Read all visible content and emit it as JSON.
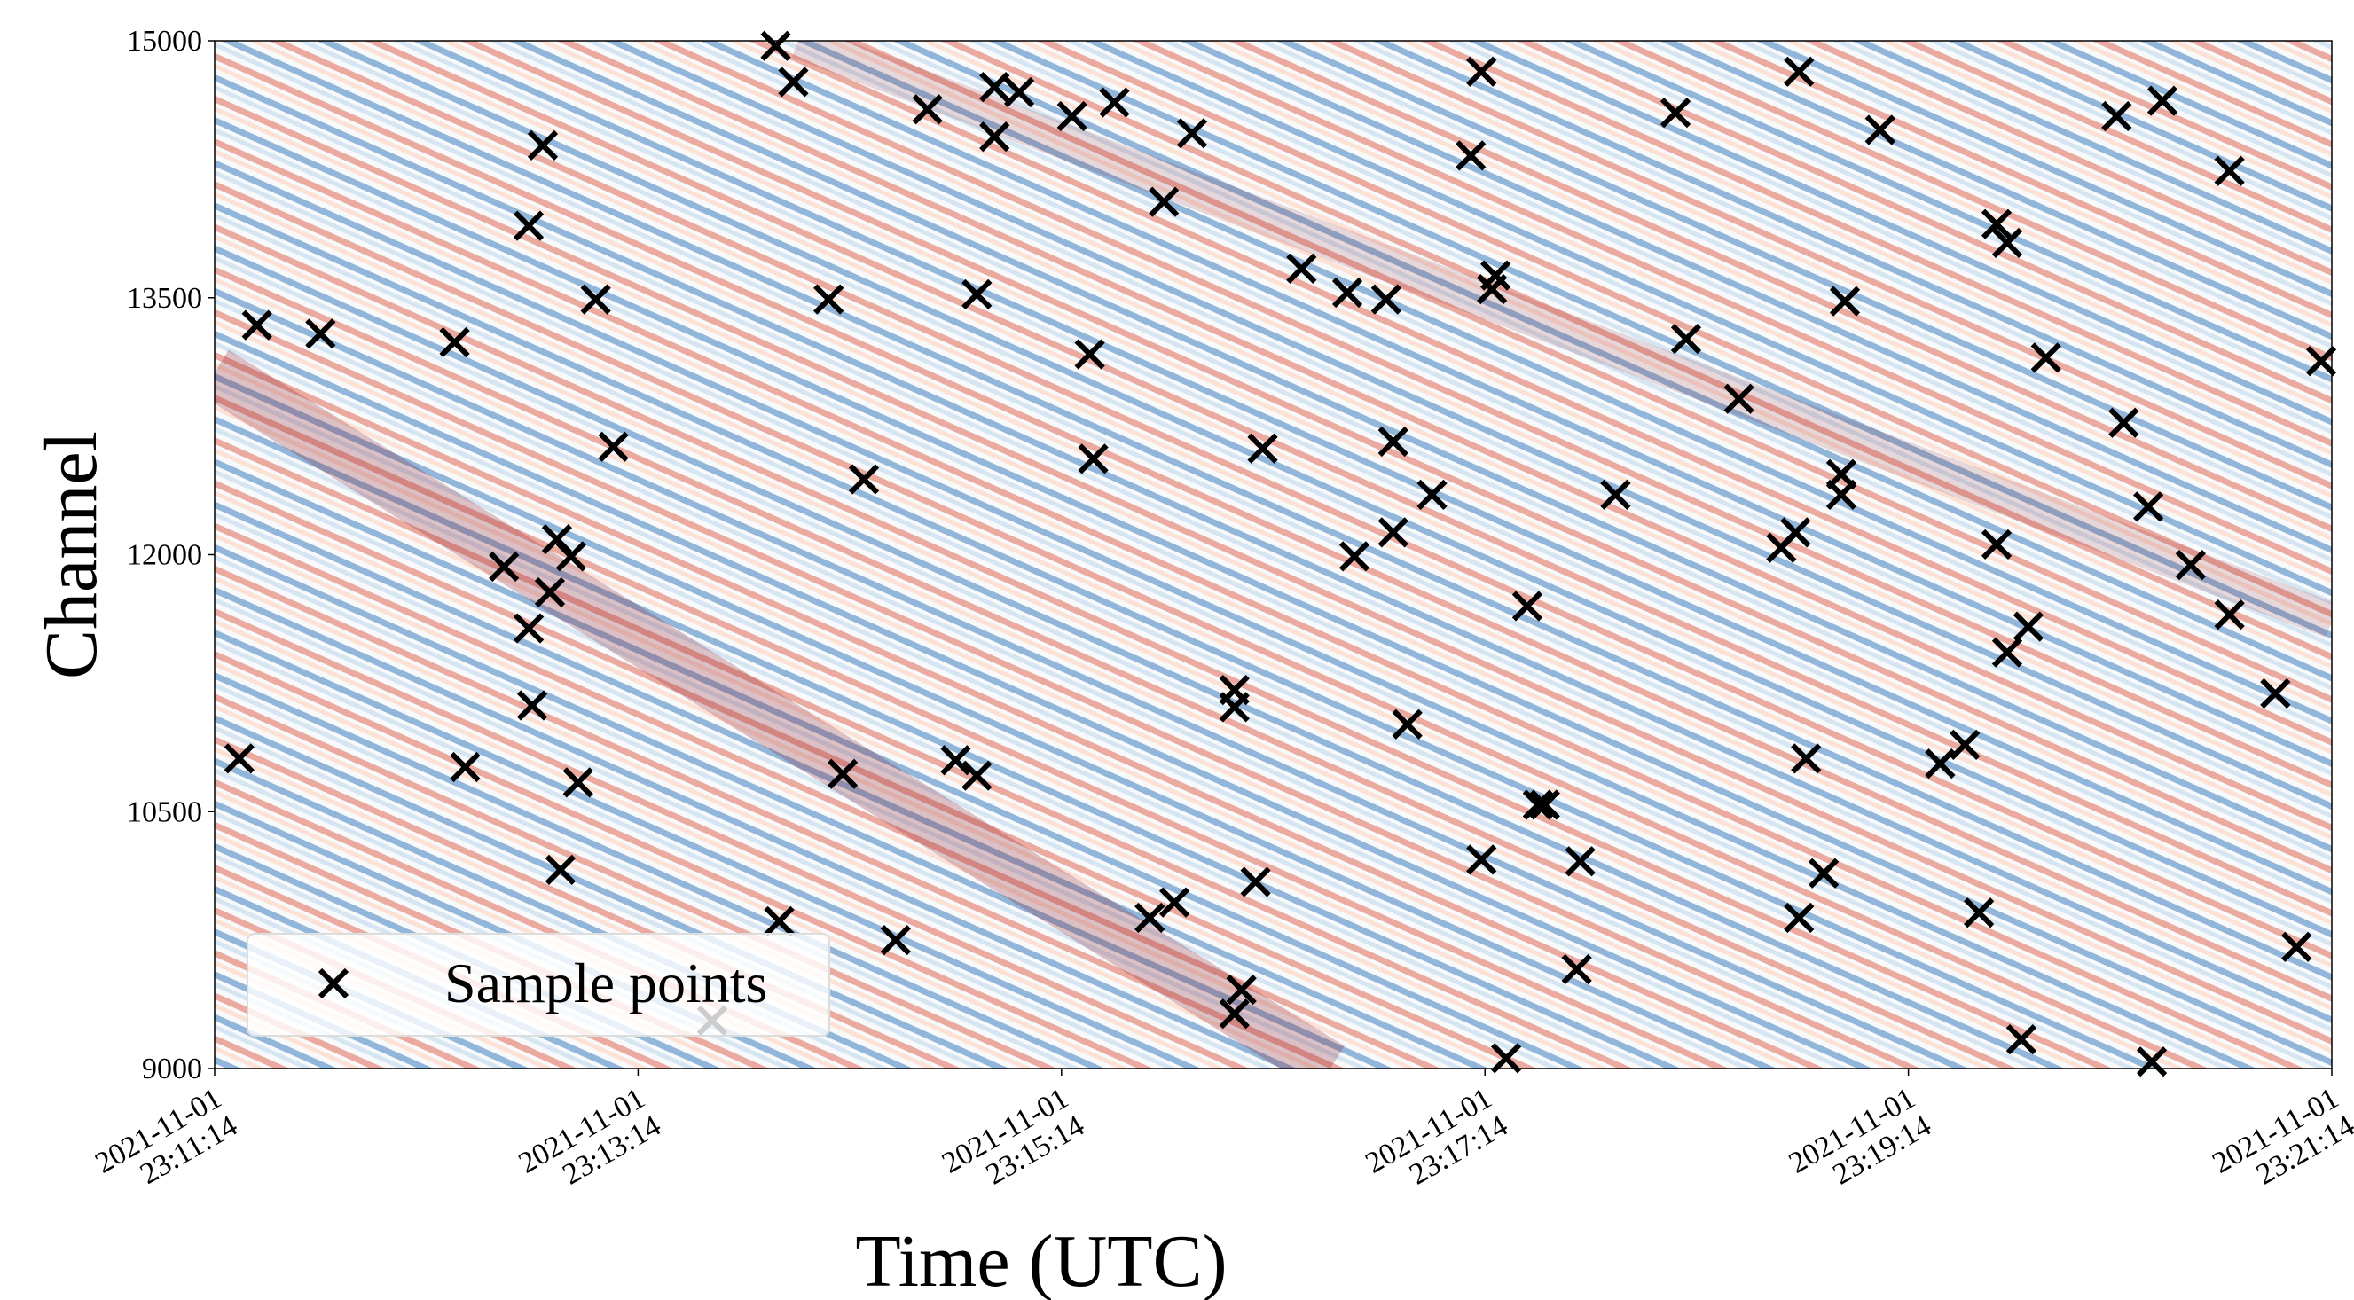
{
  "chart_data": {
    "type": "scatter",
    "xlabel": "Time (UTC)",
    "ylabel": "Channel",
    "xlim": [
      "2021-11-01 23:11:14",
      "2021-11-01 23:21:14"
    ],
    "xticks": [
      "2021-11-01 23:11:14",
      "2021-11-01 23:13:14",
      "2021-11-01 23:15:14",
      "2021-11-01 23:17:14",
      "2021-11-01 23:19:14",
      "2021-11-01 23:21:14"
    ],
    "ylim": [
      9000,
      15000
    ],
    "yticks": [
      9000,
      10500,
      12000,
      13500,
      15000
    ],
    "legend": "lower left",
    "x": [
      "2021-11-01 23:11:26",
      "2021-11-01 23:11:44",
      "2021-11-01 23:11:21",
      "2021-11-01 23:12:22",
      "2021-11-01 23:12:25",
      "2021-11-01 23:12:47",
      "2021-11-01 23:12:43",
      "2021-11-01 23:13:02",
      "2021-11-01 23:13:07",
      "2021-11-01 23:12:36",
      "2021-11-01 23:12:51",
      "2021-11-01 23:12:55",
      "2021-11-01 23:12:49",
      "2021-11-01 23:12:43",
      "2021-11-01 23:12:44",
      "2021-11-01 23:12:57",
      "2021-11-01 23:12:52",
      "2021-11-01 23:13:53",
      "2021-11-01 23:13:58",
      "2021-11-01 23:13:35",
      "2021-11-01 23:13:54",
      "2021-11-01 23:14:08",
      "2021-11-01 23:14:18",
      "2021-11-01 23:14:12",
      "2021-11-01 23:14:27",
      "2021-11-01 23:14:36",
      "2021-11-01 23:14:55",
      "2021-11-01 23:14:55",
      "2021-11-01 23:15:02",
      "2021-11-01 23:14:50",
      "2021-11-01 23:14:44",
      "2021-11-01 23:14:50",
      "2021-11-01 23:15:17",
      "2021-11-01 23:15:29",
      "2021-11-01 23:15:22",
      "2021-11-01 23:15:23",
      "2021-11-01 23:15:51",
      "2021-11-01 23:15:43",
      "2021-11-01 23:15:39",
      "2021-11-01 23:15:46",
      "2021-11-01 23:16:03",
      "2021-11-01 23:16:03",
      "2021-11-01 23:16:09",
      "2021-11-01 23:16:05",
      "2021-11-01 23:16:03",
      "2021-11-01 23:16:11",
      "2021-11-01 23:16:22",
      "2021-11-01 23:16:35",
      "2021-11-01 23:16:46",
      "2021-11-01 23:16:48",
      "2021-11-01 23:16:59",
      "2021-11-01 23:16:48",
      "2021-11-01 23:16:37",
      "2021-11-01 23:16:52",
      "2021-11-01 23:17:13",
      "2021-11-01 23:17:10",
      "2021-11-01 23:17:17",
      "2021-11-01 23:17:16",
      "2021-11-01 23:17:26",
      "2021-11-01 23:17:13",
      "2021-11-01 23:17:29",
      "2021-11-01 23:17:31",
      "2021-11-01 23:17:41",
      "2021-11-01 23:17:40",
      "2021-11-01 23:17:20",
      "2021-11-01 23:17:51",
      "2021-11-01 23:18:08",
      "2021-11-01 23:18:11",
      "2021-11-01 23:18:26",
      "2021-11-01 23:18:43",
      "2021-11-01 23:19:06",
      "2021-11-01 23:18:56",
      "2021-11-01 23:18:55",
      "2021-11-01 23:18:55",
      "2021-11-01 23:18:42",
      "2021-11-01 23:18:38",
      "2021-11-01 23:18:45",
      "2021-11-01 23:18:50",
      "2021-11-01 23:18:43",
      "2021-11-01 23:19:23",
      "2021-11-01 23:19:30",
      "2021-11-01 23:19:34",
      "2021-11-01 23:19:46",
      "2021-11-01 23:19:39",
      "2021-11-01 23:19:42",
      "2021-11-01 23:19:53",
      "2021-11-01 23:19:39",
      "2021-11-01 23:19:48",
      "2021-11-01 23:19:42",
      "2021-11-01 23:20:13",
      "2021-11-01 23:20:26",
      "2021-11-01 23:20:45",
      "2021-11-01 23:20:15",
      "2021-11-01 23:20:22",
      "2021-11-01 23:20:34",
      "2021-11-01 23:20:45",
      "2021-11-01 23:20:58",
      "2021-11-01 23:21:04",
      "2021-11-01 23:20:23",
      "2021-11-01 23:21:11"
    ],
    "series": [
      {
        "name": "Sample points",
        "color": "#000000",
        "values": [
          13340,
          13290,
          10810,
          13240,
          10760,
          14390,
          13920,
          13490,
          12630,
          11930,
          12090,
          11990,
          11780,
          11570,
          11120,
          10670,
          10160,
          14970,
          14760,
          9280,
          9860,
          13490,
          12440,
          10720,
          9750,
          14600,
          14440,
          14730,
          14700,
          13520,
          10800,
          10710,
          14560,
          14640,
          13170,
          12560,
          14460,
          14060,
          9880,
          9970,
          11210,
          11110,
          10090,
          9460,
          9320,
          12620,
          13670,
          13530,
          13490,
          12660,
          12350,
          12130,
          11990,
          11010,
          14820,
          14330,
          13630,
          13550,
          11700,
          10220,
          10540,
          10540,
          10210,
          9580,
          9060,
          12350,
          14580,
          13260,
          12910,
          14820,
          14480,
          13480,
          12470,
          12350,
          12130,
          12040,
          10810,
          10140,
          9880,
          10780,
          10890,
          9910,
          9170,
          13930,
          13820,
          13150,
          12060,
          11580,
          11430,
          14560,
          14650,
          14240,
          12770,
          12280,
          11940,
          11650,
          11190,
          9710,
          9040,
          13130
        ]
      }
    ]
  }
}
